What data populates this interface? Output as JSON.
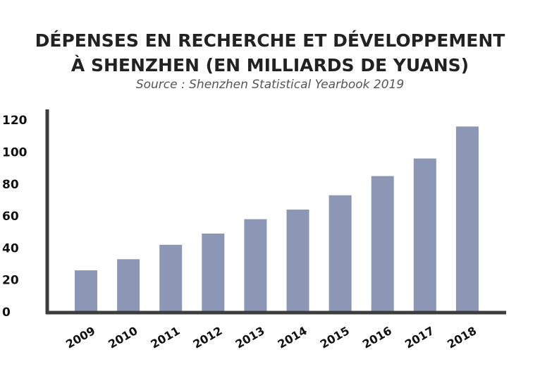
{
  "chart_data": {
    "type": "bar",
    "title_line1": "DÉPENSES EN RECHERCHE ET DÉVELOPPEMENT",
    "title_line2": "À SHENZHEN (EN MILLIARDS DE YUANS)",
    "subtitle": "Source : Shenzhen Statistical Yearbook 2019",
    "xlabel": "",
    "ylabel": "",
    "categories": [
      "2009",
      "2010",
      "2011",
      "2012",
      "2013",
      "2014",
      "2015",
      "2016",
      "2017",
      "2018"
    ],
    "values": [
      26,
      33,
      42,
      49,
      58,
      64,
      73,
      85,
      96,
      116
    ],
    "ylim": [
      0,
      125
    ],
    "yticks": [
      0,
      20,
      40,
      60,
      80,
      100,
      120
    ],
    "grid": false,
    "legend": "none",
    "bar_color": "#8c97b6",
    "axis_color": "#3d3d3d"
  }
}
